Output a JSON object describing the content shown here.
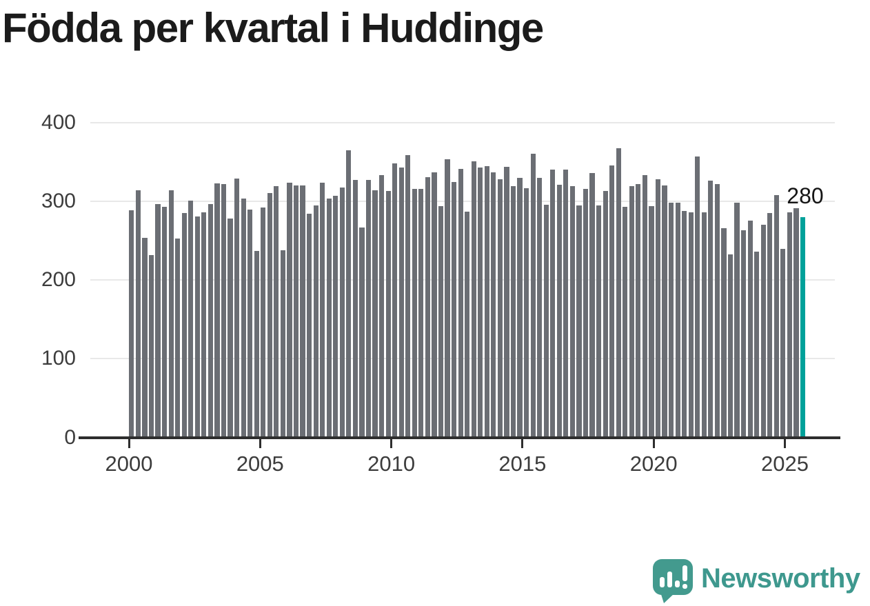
{
  "title": "Födda per kvartal i Huddinge",
  "chart_data": {
    "type": "bar",
    "title": "Födda per kvartal i Huddinge",
    "xlabel": "",
    "ylabel": "",
    "first_period": "2000 Q1",
    "last_period": "2025 Q3",
    "frequency": "quarterly",
    "series": [
      {
        "name": "Födda per kvartal",
        "values": [
          289,
          314,
          254,
          232,
          297,
          293,
          314,
          253,
          285,
          301,
          281,
          286,
          297,
          323,
          322,
          278,
          329,
          304,
          290,
          237,
          292,
          311,
          319,
          238,
          324,
          320,
          320,
          284,
          295,
          324,
          304,
          307,
          318,
          365,
          327,
          267,
          327,
          314,
          333,
          313,
          348,
          343,
          359,
          316,
          316,
          331,
          337,
          294,
          354,
          325,
          341,
          287,
          351,
          343,
          345,
          337,
          328,
          344,
          319,
          330,
          317,
          361,
          330,
          296,
          340,
          321,
          340,
          319,
          295,
          316,
          336,
          295,
          313,
          346,
          368,
          293,
          319,
          322,
          333,
          294,
          328,
          320,
          298,
          298,
          288,
          286,
          357,
          286,
          326,
          322,
          266,
          233,
          298,
          263,
          276,
          236,
          270,
          285,
          308,
          240,
          286,
          291,
          280
        ]
      }
    ],
    "highlight": {
      "index": 102,
      "period": "2025 Q3",
      "value": 280,
      "label": "280",
      "color": "#00a19a"
    },
    "bar_color": "#6b6e74",
    "y_axis": {
      "ticks": [
        0,
        100,
        200,
        300,
        400
      ],
      "lim": [
        0,
        420
      ],
      "grid": true
    },
    "x_axis": {
      "ticks": [
        "2000",
        "2005",
        "2010",
        "2015",
        "2020",
        "2025"
      ],
      "grid": false
    },
    "legend": "none"
  },
  "annotation": {
    "value_label": "280"
  },
  "colors": {
    "bar_gray": "#6b6e74",
    "bar_highlight": "#00a19a",
    "axis": "#2e2e2e",
    "gridline": "#e8e8e8",
    "title_text": "#1b1b1b",
    "logo_teal": "#3e988e"
  },
  "logo": {
    "text": "Newsworthy",
    "icon": "newsworthy-speech-bubble-chart-icon"
  }
}
